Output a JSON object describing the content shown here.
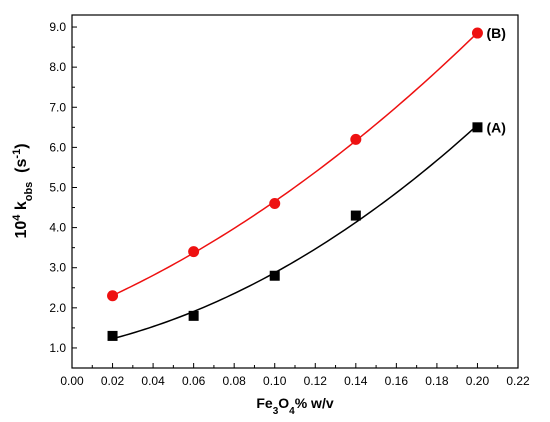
{
  "chart_data": {
    "type": "scatter",
    "title": "",
    "xlabel": {
      "base": "Fe",
      "sub1": "3",
      "mid": "O",
      "sub2": "4",
      "tail": "% w/v"
    },
    "ylabel": {
      "pre": "10",
      "sup": "4",
      "mid": " k",
      "sub": "obs",
      "post": "  (s",
      "sup2": "-1",
      "close": ")"
    },
    "xlim": [
      0.0,
      0.22
    ],
    "ylim": [
      0.5,
      9.3
    ],
    "x_ticks": [
      "0.00",
      "0.02",
      "0.04",
      "0.06",
      "0.08",
      "0.10",
      "0.12",
      "0.14",
      "0.16",
      "0.18",
      "0.20",
      "0.22"
    ],
    "y_ticks": [
      "1.0",
      "2.0",
      "3.0",
      "4.0",
      "5.0",
      "6.0",
      "7.0",
      "8.0",
      "9.0"
    ],
    "grid": false,
    "legend": "none",
    "series": [
      {
        "name": "(A)",
        "marker": "square",
        "marker_color": "#000000",
        "fit_color": "#000000",
        "x": [
          0.02,
          0.06,
          0.1,
          0.14,
          0.2
        ],
        "y": [
          1.3,
          1.8,
          2.8,
          4.3,
          6.5
        ]
      },
      {
        "name": "(B)",
        "marker": "circle",
        "marker_color": "#ee1111",
        "fit_color": "#ee1111",
        "x": [
          0.02,
          0.06,
          0.1,
          0.14,
          0.2
        ],
        "y": [
          2.3,
          3.4,
          4.6,
          6.2,
          8.85
        ]
      }
    ]
  }
}
